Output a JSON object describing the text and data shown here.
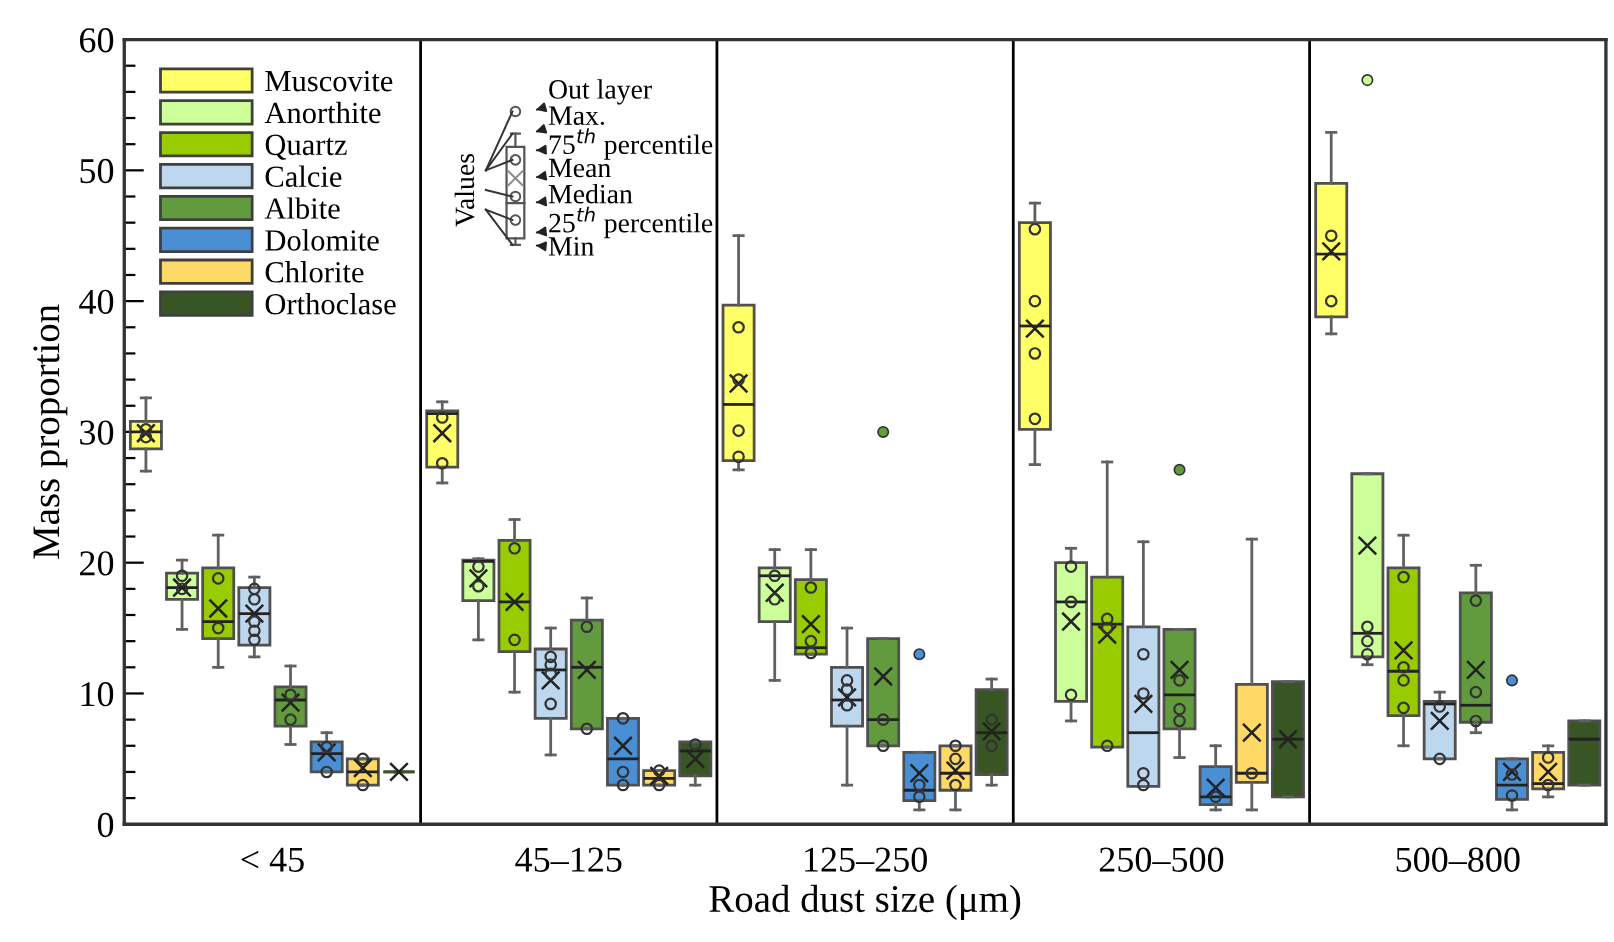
{
  "chart_data": {
    "type": "box",
    "xlabel": "Road dust size (μm)",
    "ylabel": "Mass proportion",
    "categories": [
      "< 45",
      "45–125",
      "125–250",
      "250–500",
      "500–800"
    ],
    "ylim": [
      0,
      60
    ],
    "yticks": [
      0,
      {
        "value": 2,
        "label": null
      },
      {
        "value": 4,
        "label": null
      },
      {
        "value": 6,
        "label": null
      },
      {
        "value": 8,
        "label": null
      },
      10,
      {
        "value": 12,
        "label": null
      },
      {
        "value": 14,
        "label": null
      },
      {
        "value": 16,
        "label": null
      },
      {
        "value": 18,
        "label": null
      },
      20,
      {
        "value": 22,
        "label": null
      },
      {
        "value": 24,
        "label": null
      },
      {
        "value": 26,
        "label": null
      },
      {
        "value": 28,
        "label": null
      },
      30,
      {
        "value": 32,
        "label": null
      },
      {
        "value": 34,
        "label": null
      },
      {
        "value": 36,
        "label": null
      },
      {
        "value": 38,
        "label": null
      },
      40,
      {
        "value": 42,
        "label": null
      },
      {
        "value": 44,
        "label": null
      },
      {
        "value": 46,
        "label": null
      },
      {
        "value": 48,
        "label": null
      },
      50,
      {
        "value": 52,
        "label": null
      },
      {
        "value": 54,
        "label": null
      },
      {
        "value": 56,
        "label": null
      },
      {
        "value": 58,
        "label": null
      },
      60
    ],
    "grid": false,
    "legend": "top left",
    "marker": "circle",
    "annotations": [
      "Values",
      "Out layer",
      "Max.",
      "75$^{th}$ percentile",
      "Mean",
      "Median",
      "25$^{th}$ percentile",
      "Min"
    ],
    "series": [
      {
        "name": "Muscovite",
        "color": "#ffff66",
        "boxes": [
          {
            "low": 27.0,
            "q1": 28.7,
            "median": 30.0,
            "q3": 30.8,
            "high": 32.6,
            "mean": 29.9,
            "outliers": [
              30.2,
              29.6
            ]
          },
          {
            "low": 26.1,
            "q1": 27.3,
            "median": 31.4,
            "q3": 31.6,
            "high": 32.3,
            "mean": 29.9,
            "outliers": [
              31.1,
              27.6
            ]
          },
          {
            "low": 27.1,
            "q1": 27.8,
            "median": 32.1,
            "q3": 39.7,
            "high": 45.0,
            "mean": 33.7,
            "outliers": [
              38.0,
              34.0,
              30.1,
              28.1
            ]
          },
          {
            "low": 27.5,
            "q1": 30.2,
            "median": 38.1,
            "q3": 46.0,
            "high": 47.5,
            "mean": 37.9,
            "outliers": [
              45.5,
              40.0,
              36.0,
              31.0
            ]
          },
          {
            "low": 37.5,
            "q1": 38.8,
            "median": 43.6,
            "q3": 49.0,
            "high": 52.9,
            "mean": 43.8,
            "outliers": [
              45.0,
              40.0
            ]
          }
        ]
      },
      {
        "name": "Anorthite",
        "color": "#ccff99",
        "boxes": [
          {
            "low": 14.9,
            "q1": 17.2,
            "median": 18.1,
            "q3": 19.2,
            "high": 20.2,
            "mean": 18.1,
            "outliers": [
              19.0,
              18.0
            ]
          },
          {
            "low": 14.1,
            "q1": 17.1,
            "median": 20.1,
            "q3": 20.2,
            "high": 20.3,
            "mean": 18.8,
            "outliers": [
              19.7,
              18.2
            ]
          },
          {
            "low": 11.0,
            "q1": 15.5,
            "median": 19.0,
            "q3": 19.6,
            "high": 21.0,
            "mean": 17.7,
            "outliers": [
              19.0,
              17.2
            ]
          },
          {
            "low": 7.9,
            "q1": 9.4,
            "median": 17.0,
            "q3": 20.0,
            "high": 21.1,
            "mean": 15.5,
            "outliers": [
              19.7,
              17.0,
              9.9
            ]
          },
          {
            "low": 12.2,
            "q1": 12.8,
            "median": 14.6,
            "q3": 26.8,
            "high": 26.8,
            "mean": 21.3,
            "outliers": [
              15.1,
              14.0,
              13.0,
              56.9
            ]
          }
        ]
      },
      {
        "name": "Quartz",
        "color": "#99cc00",
        "boxes": [
          {
            "low": 12.0,
            "q1": 14.2,
            "median": 15.5,
            "q3": 19.6,
            "high": 22.1,
            "mean": 16.5,
            "outliers": [
              18.8,
              15.0
            ]
          },
          {
            "low": 10.1,
            "q1": 13.2,
            "median": 17.0,
            "q3": 21.7,
            "high": 23.3,
            "mean": 17.0,
            "outliers": [
              21.1,
              14.1
            ]
          },
          {
            "low": 13.0,
            "q1": 13.0,
            "median": 13.5,
            "q3": 18.7,
            "high": 21.0,
            "mean": 15.3,
            "outliers": [
              18.1,
              14.0,
              13.1
            ]
          },
          {
            "low": 5.9,
            "q1": 5.9,
            "median": 15.3,
            "q3": 18.9,
            "high": 27.7,
            "mean": 14.5,
            "outliers": [
              15.7,
              15.0,
              6.0
            ]
          },
          {
            "low": 6.0,
            "q1": 8.3,
            "median": 11.7,
            "q3": 19.6,
            "high": 22.1,
            "mean": 13.3,
            "outliers": [
              18.9,
              12.0,
              11.0,
              8.9
            ]
          }
        ]
      },
      {
        "name": "Calcie",
        "color": "#bdd7ee",
        "boxes": [
          {
            "low": 12.8,
            "q1": 13.7,
            "median": 16.1,
            "q3": 18.1,
            "high": 18.9,
            "mean": 16.1,
            "outliers": [
              18.0,
              17.2,
              15.5,
              14.8,
              14.1
            ]
          },
          {
            "low": 5.3,
            "q1": 8.1,
            "median": 11.8,
            "q3": 13.4,
            "high": 15.0,
            "mean": 11.0,
            "outliers": [
              12.8,
              12.2,
              11.5,
              9.2
            ]
          },
          {
            "low": 3.0,
            "q1": 7.5,
            "median": 9.5,
            "q3": 12.0,
            "high": 15.0,
            "mean": 9.7,
            "outliers": [
              11.0,
              10.3,
              9.1
            ]
          },
          {
            "low": 2.9,
            "q1": 2.9,
            "median": 7.0,
            "q3": 15.1,
            "high": 21.6,
            "mean": 9.2,
            "outliers": [
              13.0,
              10.0,
              3.9,
              3.0
            ]
          },
          {
            "low": 5.0,
            "q1": 5.0,
            "median": 9.2,
            "q3": 9.4,
            "high": 10.1,
            "mean": 7.9,
            "outliers": [
              9.0,
              5.0
            ]
          }
        ]
      },
      {
        "name": "Albite",
        "color": "#629b3e",
        "boxes": [
          {
            "low": 6.1,
            "q1": 7.5,
            "median": 9.5,
            "q3": 10.5,
            "high": 12.1,
            "mean": 9.3,
            "outliers": [
              9.9,
              8.0
            ]
          },
          {
            "low": 7.3,
            "q1": 7.3,
            "median": 12.0,
            "q3": 15.6,
            "high": 17.3,
            "mean": 11.8,
            "outliers": [
              15.1,
              7.3
            ]
          },
          {
            "low": 6.0,
            "q1": 6.0,
            "median": 8.0,
            "q3": 14.2,
            "high": 14.2,
            "mean": 11.3,
            "outliers": [
              8.0,
              6.0,
              30.0
            ]
          },
          {
            "low": 5.1,
            "q1": 7.3,
            "median": 9.9,
            "q3": 14.9,
            "high": 14.9,
            "mean": 11.8,
            "outliers": [
              11.0,
              8.8,
              7.9,
              27.1
            ]
          },
          {
            "low": 7.0,
            "q1": 7.8,
            "median": 9.1,
            "q3": 17.7,
            "high": 19.8,
            "mean": 11.8,
            "outliers": [
              17.1,
              10.1,
              7.9
            ]
          }
        ]
      },
      {
        "name": "Dolomite",
        "color": "#4a8fd4",
        "boxes": [
          {
            "low": 4.0,
            "q1": 4.0,
            "median": 5.4,
            "q3": 6.3,
            "high": 7.0,
            "mean": 5.5,
            "outliers": [
              5.9,
              4.0
            ]
          },
          {
            "low": 3.0,
            "q1": 3.0,
            "median": 5.0,
            "q3": 8.1,
            "high": 8.1,
            "mean": 6.0,
            "outliers": [
              8.1,
              4.0,
              3.0
            ]
          },
          {
            "low": 1.1,
            "q1": 1.8,
            "median": 2.6,
            "q3": 5.5,
            "high": 5.5,
            "mean": 3.9,
            "outliers": [
              3.0,
              2.1,
              13.0
            ]
          },
          {
            "low": 1.1,
            "q1": 1.5,
            "median": 2.1,
            "q3": 4.4,
            "high": 6.0,
            "mean": 2.8,
            "outliers": [
              2.1
            ]
          },
          {
            "low": 1.1,
            "q1": 1.9,
            "median": 3.0,
            "q3": 5.0,
            "high": 5.0,
            "mean": 4.0,
            "outliers": [
              3.8,
              2.2,
              11.0
            ]
          }
        ]
      },
      {
        "name": "Chlorite",
        "color": "#ffd966",
        "boxes": [
          {
            "low": 3.0,
            "q1": 3.0,
            "median": 4.0,
            "q3": 5.0,
            "high": 5.0,
            "mean": 4.3,
            "outliers": [
              5.0,
              3.0
            ]
          },
          {
            "low": 3.0,
            "q1": 3.0,
            "median": 3.5,
            "q3": 4.1,
            "high": 4.1,
            "mean": 3.7,
            "outliers": [
              4.1,
              3.0
            ]
          },
          {
            "low": 1.1,
            "q1": 2.6,
            "median": 3.9,
            "q3": 6.0,
            "high": 6.0,
            "mean": 4.1,
            "outliers": [
              6.0,
              5.0,
              3.0
            ]
          },
          {
            "low": 1.1,
            "q1": 3.2,
            "median": 3.9,
            "q3": 10.7,
            "high": 21.8,
            "mean": 7.0,
            "outliers": [
              3.9
            ]
          },
          {
            "low": 2.1,
            "q1": 2.7,
            "median": 3.1,
            "q3": 5.5,
            "high": 6.0,
            "mean": 4.0,
            "outliers": [
              5.1,
              3.0
            ]
          }
        ]
      },
      {
        "name": "Orthoclase",
        "color": "#375623",
        "boxes": [
          {
            "low": 4.0,
            "q1": 4.0,
            "median": 4.0,
            "q3": 4.0,
            "high": 4.0,
            "mean": 4.0
          },
          {
            "low": 3.0,
            "q1": 3.7,
            "median": 5.6,
            "q3": 6.3,
            "high": 6.3,
            "mean": 5.0,
            "outliers": [
              6.1
            ]
          },
          {
            "low": 3.0,
            "q1": 3.8,
            "median": 7.0,
            "q3": 10.3,
            "high": 11.1,
            "mean": 7.1,
            "outliers": [
              8.0,
              6.0
            ]
          },
          {
            "low": 2.1,
            "q1": 2.1,
            "median": 6.5,
            "q3": 10.9,
            "high": 10.9,
            "mean": 6.5
          },
          {
            "low": 3.0,
            "q1": 3.0,
            "median": 6.5,
            "q3": 7.9,
            "high": 7.9
          }
        ]
      }
    ]
  }
}
